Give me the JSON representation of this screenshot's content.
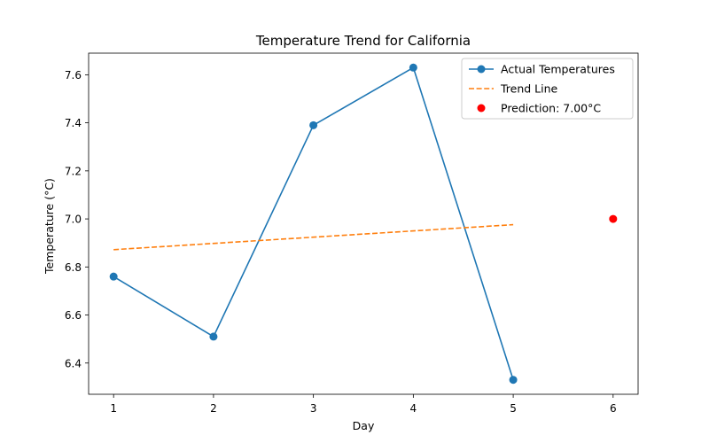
{
  "chart_data": {
    "type": "line",
    "title": "Temperature Trend for California",
    "xlabel": "Day",
    "ylabel": "Temperature (°C)",
    "xlim": [
      0.75,
      6.25
    ],
    "ylim": [
      6.27,
      7.69
    ],
    "xticks": [
      1,
      2,
      3,
      4,
      5,
      6
    ],
    "yticks": [
      6.4,
      6.6,
      6.8,
      7.0,
      7.2,
      7.4,
      7.6
    ],
    "grid": false,
    "legend_position": "upper right",
    "series": [
      {
        "name": "Actual Temperatures",
        "kind": "line-marker",
        "color": "#1f77b4",
        "x": [
          1,
          2,
          3,
          4,
          5
        ],
        "y": [
          6.76,
          6.51,
          7.39,
          7.63,
          6.33
        ]
      },
      {
        "name": "Trend Line",
        "kind": "dashed-line",
        "color": "#ff7f0e",
        "x": [
          1,
          5
        ],
        "y": [
          6.872,
          6.976
        ]
      },
      {
        "name": "Prediction: 7.00°C",
        "kind": "scatter",
        "color": "#ff0000",
        "x": [
          6
        ],
        "y": [
          7.0
        ]
      }
    ]
  }
}
